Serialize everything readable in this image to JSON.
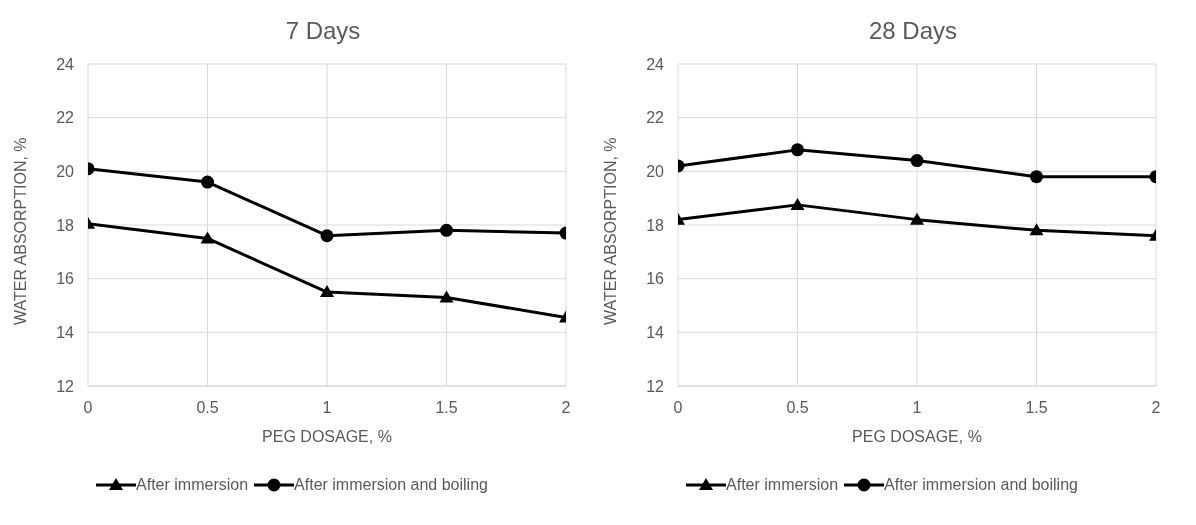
{
  "chart_data": [
    {
      "type": "line",
      "title": "7 Days",
      "xlabel": "PEG DOSAGE, %",
      "ylabel": "WATER ABSORPTION, %",
      "x": [
        0,
        0.5,
        1,
        1.5,
        2
      ],
      "xlim": [
        0,
        2
      ],
      "xticks": [
        0,
        0.5,
        1,
        1.5,
        2
      ],
      "ylim": [
        12,
        24
      ],
      "yticks": [
        12,
        14,
        16,
        18,
        20,
        22,
        24
      ],
      "grid": true,
      "legend": "bottom",
      "line_style": "solid",
      "series": [
        {
          "name": "After immersion",
          "color": "#000000",
          "marker": "triangle",
          "values": [
            18.05,
            17.5,
            15.5,
            15.3,
            14.55
          ]
        },
        {
          "name": "After immersion and boiling",
          "color": "#000000",
          "marker": "circle",
          "values": [
            20.1,
            19.6,
            17.6,
            17.8,
            17.7
          ]
        }
      ]
    },
    {
      "type": "line",
      "title": "28 Days",
      "xlabel": "PEG DOSAGE, %",
      "ylabel": "WATER ABSORPTION, %",
      "x": [
        0,
        0.5,
        1,
        1.5,
        2
      ],
      "xlim": [
        0,
        2
      ],
      "xticks": [
        0,
        0.5,
        1,
        1.5,
        2
      ],
      "ylim": [
        12,
        24
      ],
      "yticks": [
        12,
        14,
        16,
        18,
        20,
        22,
        24
      ],
      "grid": true,
      "legend": "bottom",
      "line_style": "solid",
      "series": [
        {
          "name": "After immersion",
          "color": "#000000",
          "marker": "triangle",
          "values": [
            18.2,
            18.75,
            18.2,
            17.8,
            17.6
          ]
        },
        {
          "name": "After immersion and boiling",
          "color": "#000000",
          "marker": "circle",
          "values": [
            20.2,
            20.8,
            20.4,
            19.8,
            19.8
          ]
        }
      ]
    }
  ]
}
